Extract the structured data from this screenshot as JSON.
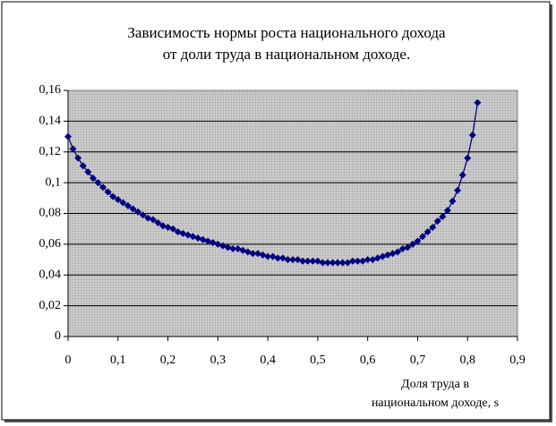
{
  "chart_data": {
    "type": "line",
    "title": [
      "Зависимость нормы роста национального дохода",
      "от доли труда в национальном доходе."
    ],
    "x_label": [
      "Доля труда в",
      "национальном доходе, s"
    ],
    "x": [
      0,
      0.01,
      0.02,
      0.03,
      0.04,
      0.05,
      0.06,
      0.07,
      0.08,
      0.09,
      0.1,
      0.11,
      0.12,
      0.13,
      0.14,
      0.15,
      0.16,
      0.17,
      0.18,
      0.19,
      0.2,
      0.21,
      0.22,
      0.23,
      0.24,
      0.25,
      0.26,
      0.27,
      0.28,
      0.29,
      0.3,
      0.31,
      0.32,
      0.33,
      0.34,
      0.35,
      0.36,
      0.37,
      0.38,
      0.39,
      0.4,
      0.41,
      0.42,
      0.43,
      0.44,
      0.45,
      0.46,
      0.47,
      0.48,
      0.49,
      0.5,
      0.51,
      0.52,
      0.53,
      0.54,
      0.55,
      0.56,
      0.57,
      0.58,
      0.59,
      0.6,
      0.61,
      0.62,
      0.63,
      0.64,
      0.65,
      0.66,
      0.67,
      0.68,
      0.69,
      0.7,
      0.71,
      0.72,
      0.73,
      0.74,
      0.75,
      0.76,
      0.77,
      0.78,
      0.79,
      0.8,
      0.81,
      0.82
    ],
    "series": [
      {
        "color": "#000080",
        "values": [
          0.13,
          0.122,
          0.116,
          0.111,
          0.107,
          0.103,
          0.1,
          0.097,
          0.094,
          0.091,
          0.089,
          0.087,
          0.085,
          0.083,
          0.081,
          0.079,
          0.077,
          0.076,
          0.074,
          0.072,
          0.071,
          0.07,
          0.068,
          0.067,
          0.066,
          0.065,
          0.064,
          0.063,
          0.062,
          0.061,
          0.06,
          0.059,
          0.058,
          0.057,
          0.057,
          0.056,
          0.055,
          0.054,
          0.054,
          0.053,
          0.052,
          0.052,
          0.051,
          0.051,
          0.05,
          0.05,
          0.05,
          0.049,
          0.049,
          0.049,
          0.049,
          0.048,
          0.048,
          0.048,
          0.048,
          0.048,
          0.048,
          0.049,
          0.049,
          0.049,
          0.05,
          0.05,
          0.051,
          0.052,
          0.053,
          0.054,
          0.055,
          0.057,
          0.058,
          0.06,
          0.062,
          0.065,
          0.068,
          0.071,
          0.075,
          0.078,
          0.082,
          0.088,
          0.095,
          0.105,
          0.116,
          0.131,
          0.152
        ]
      }
    ],
    "xlim": [
      0,
      0.9
    ],
    "xticks": [
      0,
      {
        "value": 0.1,
        "label": "0,1"
      },
      {
        "value": 0.2,
        "label": "0,2"
      },
      {
        "value": 0.3,
        "label": "0,3"
      },
      {
        "value": 0.4,
        "label": "0,4"
      },
      {
        "value": 0.5,
        "label": "0,5"
      },
      {
        "value": 0.6,
        "label": "0,6"
      },
      {
        "value": 0.7,
        "label": "0,7"
      },
      {
        "value": 0.8,
        "label": "0,8"
      },
      {
        "value": 0.9,
        "label": "0,9"
      }
    ],
    "ylim": [
      0,
      0.16
    ],
    "yticks": [
      0,
      {
        "value": 0.02,
        "label": "0,02"
      },
      {
        "value": 0.04,
        "label": "0,04"
      },
      {
        "value": 0.06,
        "label": "0,06"
      },
      {
        "value": 0.08,
        "label": "0,08"
      },
      {
        "value": 0.1,
        "label": "0,1"
      },
      {
        "value": 0.12,
        "label": "0,12"
      },
      {
        "value": 0.14,
        "label": "0,14"
      },
      {
        "value": 0.16,
        "label": "0,16"
      }
    ],
    "grid": true
  }
}
